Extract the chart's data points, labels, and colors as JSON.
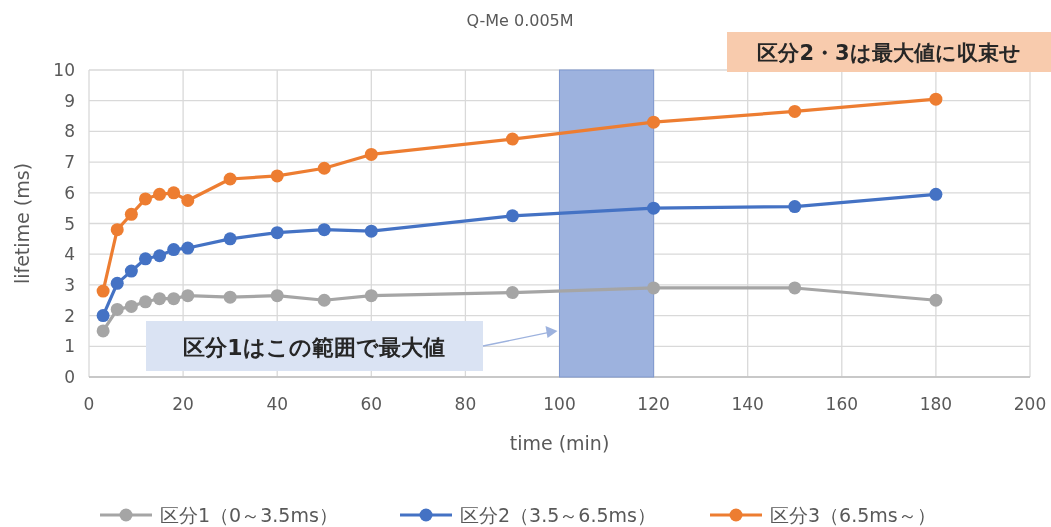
{
  "chart_data": {
    "type": "line",
    "title": "Q-Me 0.005M",
    "xlabel": "time (min)",
    "ylabel": "lifetime (ms)",
    "x": [
      3,
      6,
      9,
      12,
      15,
      18,
      21,
      30,
      40,
      50,
      60,
      90,
      120,
      150,
      180
    ],
    "series": [
      {
        "name": "区分1（0～3.5ms）",
        "color": "#a5a5a5",
        "values": [
          1.5,
          2.2,
          2.3,
          2.45,
          2.55,
          2.55,
          2.65,
          2.6,
          2.65,
          2.5,
          2.65,
          2.75,
          2.9,
          2.9,
          2.5
        ]
      },
      {
        "name": "区分2（3.5～6.5ms）",
        "color": "#4472c4",
        "values": [
          2.0,
          3.05,
          3.45,
          3.85,
          3.95,
          4.15,
          4.2,
          4.5,
          4.7,
          4.8,
          4.75,
          5.25,
          5.5,
          5.55,
          5.95
        ]
      },
      {
        "name": "区分3（6.5ms～）",
        "color": "#ed7d31",
        "values": [
          2.8,
          4.8,
          5.3,
          5.8,
          5.95,
          6.0,
          5.75,
          6.45,
          6.55,
          6.8,
          7.25,
          7.75,
          8.3,
          8.65,
          9.05
        ]
      }
    ],
    "xlim": [
      0,
      200
    ],
    "xticks": [
      0,
      20,
      40,
      60,
      80,
      100,
      120,
      140,
      160,
      180,
      200
    ],
    "ylim": [
      0,
      10
    ],
    "yticks": [
      0,
      1,
      2,
      3,
      4,
      5,
      6,
      7,
      8,
      9,
      10
    ],
    "bands": [
      {
        "axis": "x",
        "from": 100,
        "to": 120,
        "color": "#9db2de"
      }
    ],
    "annotations": [
      "区分2・3は最大値に収束せ",
      "区分1はこの範囲で最大値"
    ],
    "grid": true,
    "legend": "bottom",
    "marker": "circle",
    "line_style": "solid"
  }
}
